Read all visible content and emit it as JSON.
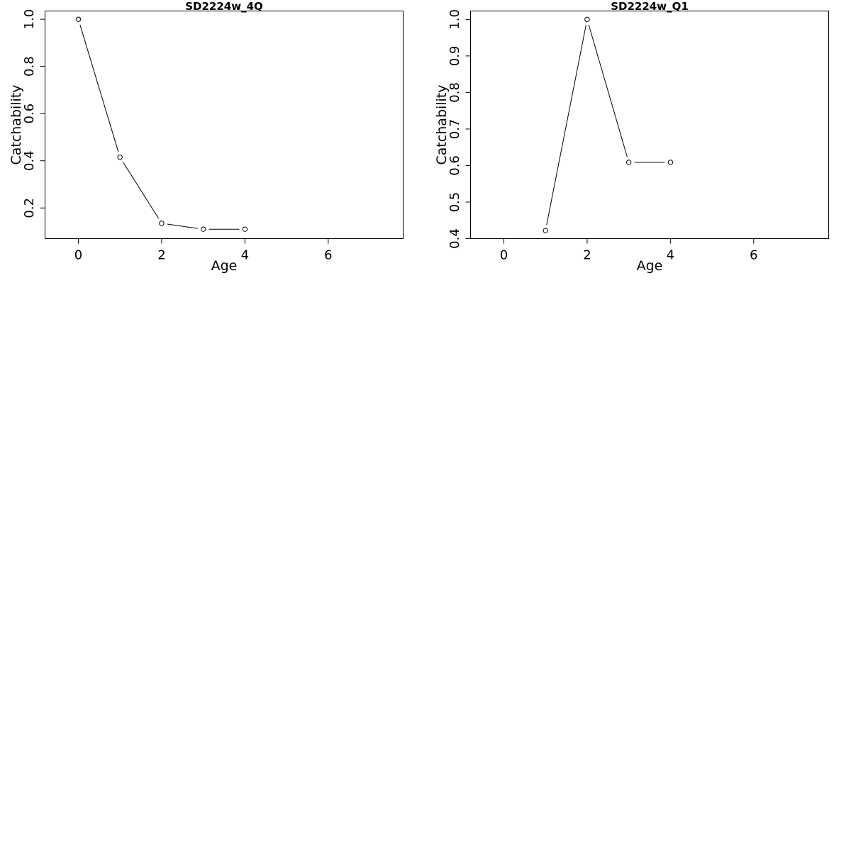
{
  "chart_data": [
    {
      "type": "line",
      "title": "SD2224w_4Q",
      "xlabel": "Age",
      "ylabel": "Catchability",
      "xlim": [
        -0.8,
        7.8
      ],
      "ylim": [
        0.07,
        1.035
      ],
      "xticks": [
        "0",
        "2",
        "4",
        "6"
      ],
      "yticks": [
        "0.2",
        "0.4",
        "0.6",
        "0.8",
        "1.0"
      ],
      "series": [
        {
          "x": [
            0,
            1,
            2,
            3,
            4
          ],
          "y": [
            1.0,
            0.415,
            0.135,
            0.11,
            0.11
          ]
        }
      ],
      "marker": "open-circle",
      "line_color": "#000000",
      "grid": false,
      "legend": "none"
    },
    {
      "type": "line",
      "title": "SD2224w_Q1",
      "xlabel": "Age",
      "ylabel": "Catchability",
      "xlim": [
        -0.8,
        7.8
      ],
      "ylim": [
        0.4,
        1.023
      ],
      "xticks": [
        "0",
        "2",
        "4",
        "6"
      ],
      "yticks": [
        "0.4",
        "0.5",
        "0.6",
        "0.7",
        "0.8",
        "0.9",
        "1.0"
      ],
      "series": [
        {
          "x": [
            1,
            2,
            3,
            4
          ],
          "y": [
            0.422,
            1.0,
            0.609,
            0.609
          ]
        }
      ],
      "marker": "open-circle",
      "line_color": "#000000",
      "grid": false,
      "legend": "none"
    }
  ]
}
